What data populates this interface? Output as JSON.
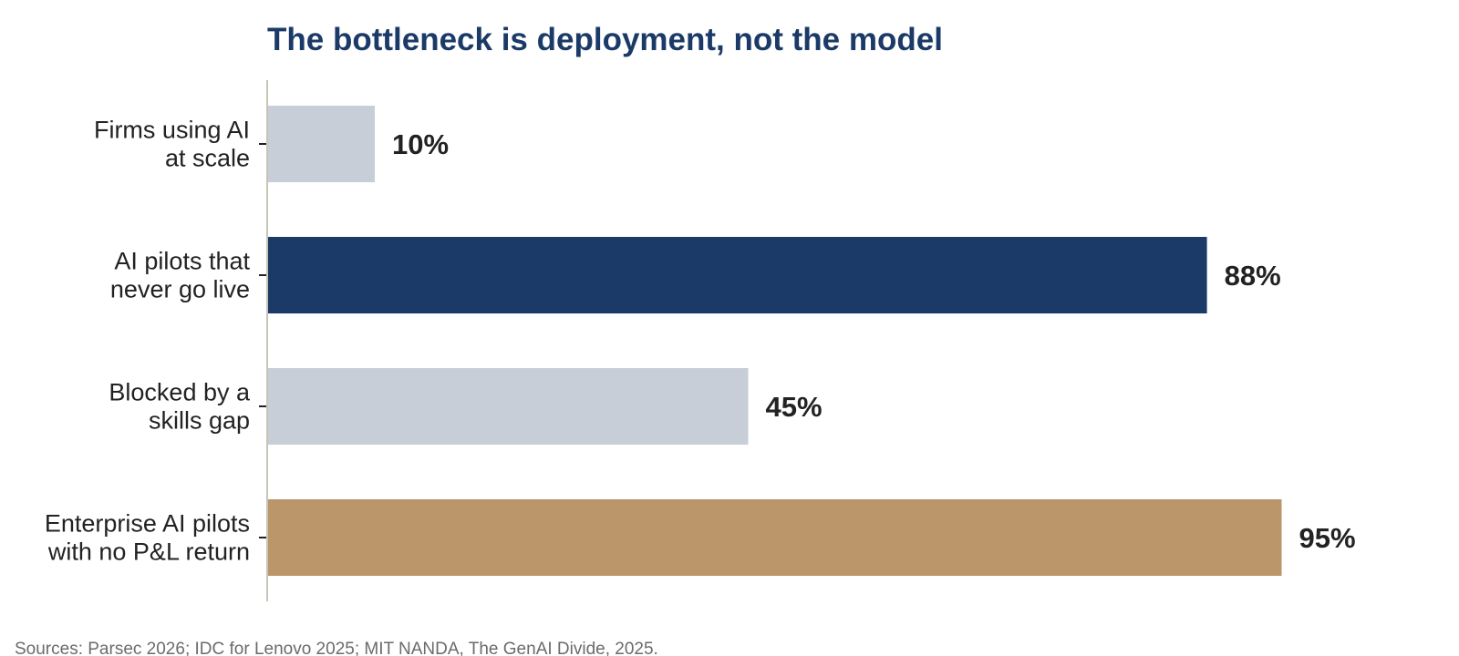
{
  "chart_data": {
    "type": "bar",
    "orientation": "horizontal",
    "title": "The bottleneck is deployment, not the model",
    "categories": [
      [
        "Firms using AI",
        "at scale"
      ],
      [
        "AI pilots that",
        "never go live"
      ],
      [
        "Blocked by a",
        "skills gap"
      ],
      [
        "Enterprise AI pilots",
        "with no P&L return"
      ]
    ],
    "values": [
      10,
      88,
      45,
      95
    ],
    "value_labels": [
      "10%",
      "88%",
      "45%",
      "95%"
    ],
    "bar_colors": [
      "#c8ced7",
      "#1b3a67",
      "#c8ced7",
      "#bb966b"
    ],
    "xlim": [
      0,
      100
    ],
    "grid": false,
    "legend": "none"
  },
  "footer": {
    "source": "Sources: Parsec 2026; IDC for Lenovo 2025; MIT NANDA, The GenAI Divide, 2025."
  }
}
